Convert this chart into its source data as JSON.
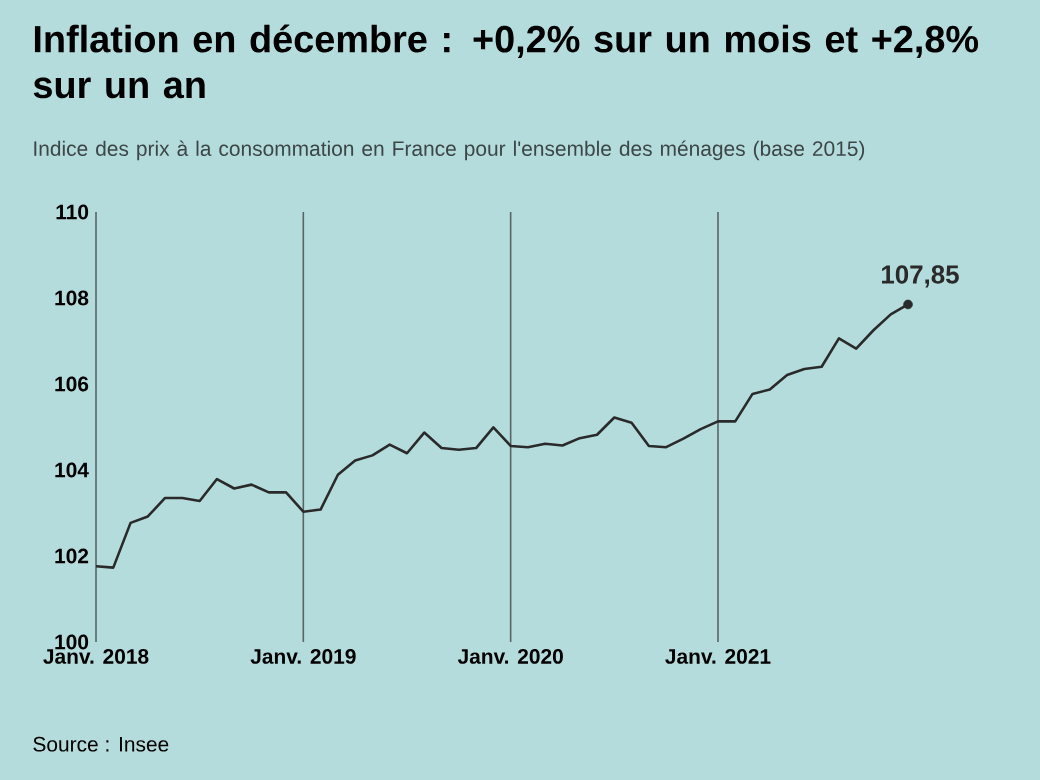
{
  "chart_data": {
    "type": "line",
    "title": "Inflation en décembre : +0,2% sur un mois et +2,8% sur un an",
    "subtitle": "Indice des prix à la consommation en France pour l'ensemble des ménages (base 2015)",
    "categories": [
      "Janv. 2018",
      null,
      null,
      null,
      null,
      null,
      null,
      null,
      null,
      null,
      null,
      null,
      "Janv. 2019",
      null,
      null,
      null,
      null,
      null,
      null,
      null,
      null,
      null,
      null,
      null,
      "Janv. 2020",
      null,
      null,
      null,
      null,
      null,
      null,
      null,
      null,
      null,
      null,
      null,
      "Janv. 2021",
      null,
      null,
      null,
      null,
      null,
      null,
      null,
      null,
      null,
      null,
      null
    ],
    "series": [
      {
        "color": "#2a2a2a",
        "values": [
          101.76,
          101.73,
          102.77,
          102.92,
          103.35,
          103.35,
          103.28,
          103.79,
          103.57,
          103.66,
          103.48,
          103.48,
          103.03,
          103.08,
          103.89,
          104.22,
          104.34,
          104.59,
          104.39,
          104.87,
          104.51,
          104.47,
          104.51,
          104.99,
          104.56,
          104.53,
          104.61,
          104.57,
          104.74,
          104.82,
          105.22,
          105.1,
          104.56,
          104.53,
          104.73,
          104.95,
          105.13,
          105.13,
          105.77,
          105.87,
          106.21,
          106.35,
          106.4,
          107.06,
          106.82,
          107.25,
          107.62,
          107.85
        ],
        "value_labels": [
          null,
          null,
          null,
          null,
          null,
          null,
          null,
          null,
          null,
          null,
          null,
          null,
          null,
          null,
          null,
          null,
          null,
          null,
          null,
          null,
          null,
          null,
          null,
          null,
          null,
          null,
          null,
          null,
          null,
          null,
          null,
          null,
          null,
          null,
          null,
          null,
          null,
          null,
          null,
          null,
          null,
          null,
          null,
          null,
          null,
          null,
          null,
          "107,85"
        ]
      }
    ],
    "ylim": [
      100,
      110
    ],
    "yticks": [
      100,
      102,
      104,
      106,
      108,
      110
    ],
    "grid": "x",
    "annotations": [
      "Source : Insee"
    ]
  }
}
